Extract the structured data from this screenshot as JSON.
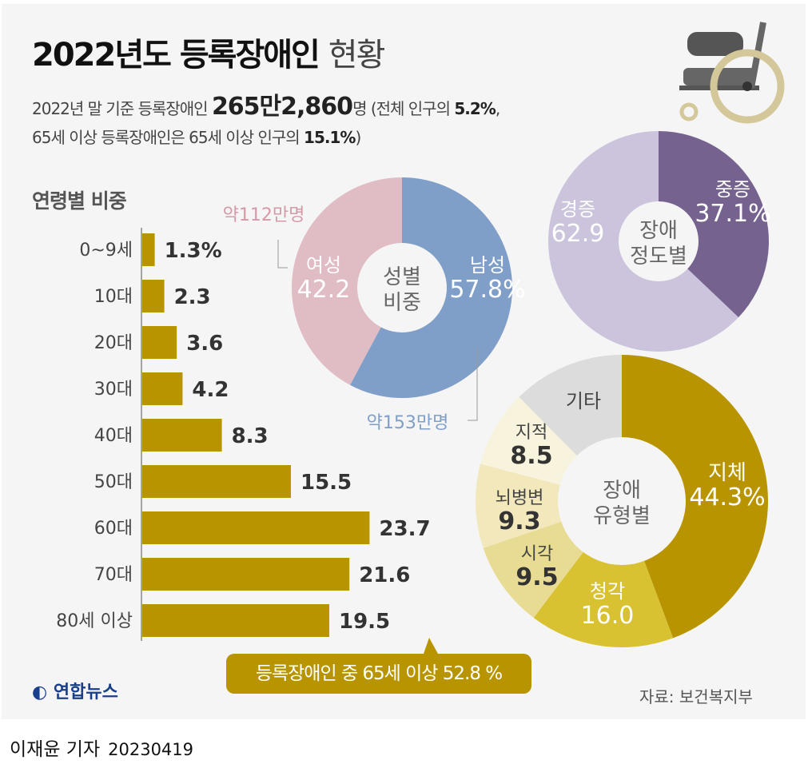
{
  "title_bold": "2022년도 등록장애인",
  "title_light": "현황",
  "subtitle1_pre": "2022년 말 기준 등록장애인",
  "subtitle1_num": "265만2,860",
  "subtitle1_post": "명 (전체 인구의",
  "subtitle1_pct": "5.2%",
  "subtitle1_end": ",",
  "subtitle2_pre": "65세 이상 등록장애인은 65세 이상 인구의",
  "subtitle2_pct": "15.1%",
  "subtitle2_end": ")",
  "callout": "등록장애인 중 65세 이상 52.8 %",
  "logo": "연합뉴스",
  "source": "자료: 보건복지부",
  "byline_name": "이재윤 기자",
  "byline_date": "20230419",
  "chart_data": [
    {
      "type": "bar",
      "orientation": "horizontal",
      "title": "연령별 비중",
      "unit": "%",
      "categories": [
        "0~9세",
        "10대",
        "20대",
        "30대",
        "40대",
        "50대",
        "60대",
        "70대",
        "80세 이상"
      ],
      "values": [
        1.3,
        2.3,
        3.6,
        4.2,
        8.3,
        15.5,
        23.7,
        21.6,
        19.5
      ],
      "labels": [
        "1.3%",
        "2.3",
        "3.6",
        "4.2",
        "8.3",
        "15.5",
        "23.7",
        "21.6",
        "19.5"
      ],
      "color": "#b89500"
    },
    {
      "type": "pie",
      "donut": true,
      "center_label": [
        "성별",
        "비중"
      ],
      "slices": [
        {
          "name": "남성",
          "value": 57.8,
          "label": "57.8%",
          "note": "약153만명",
          "color": "#7f9ec8"
        },
        {
          "name": "여성",
          "value": 42.2,
          "label": "42.2",
          "note": "약112만명",
          "color": "#e0bcc4"
        }
      ]
    },
    {
      "type": "pie",
      "donut": true,
      "center_label": [
        "장애",
        "정도별"
      ],
      "slices": [
        {
          "name": "중증",
          "value": 37.1,
          "label": "37.1%",
          "color": "#76628f"
        },
        {
          "name": "경증",
          "value": 62.9,
          "label": "62.9",
          "color": "#cbc4dc"
        }
      ]
    },
    {
      "type": "pie",
      "donut": true,
      "center_label": [
        "장애",
        "유형별"
      ],
      "slices": [
        {
          "name": "지체",
          "value": 44.3,
          "label": "44.3%",
          "color": "#b89500"
        },
        {
          "name": "청각",
          "value": 16.0,
          "label": "16.0",
          "color": "#d8c232"
        },
        {
          "name": "시각",
          "value": 9.5,
          "label": "9.5",
          "color": "#e8dc94"
        },
        {
          "name": "뇌병변",
          "value": 9.3,
          "label": "9.3",
          "color": "#f2e8bc"
        },
        {
          "name": "지적",
          "value": 8.5,
          "label": "8.5",
          "color": "#f8f3dc"
        },
        {
          "name": "기타",
          "value": 12.4,
          "label": "",
          "color": "#dcdcdc"
        }
      ]
    }
  ]
}
